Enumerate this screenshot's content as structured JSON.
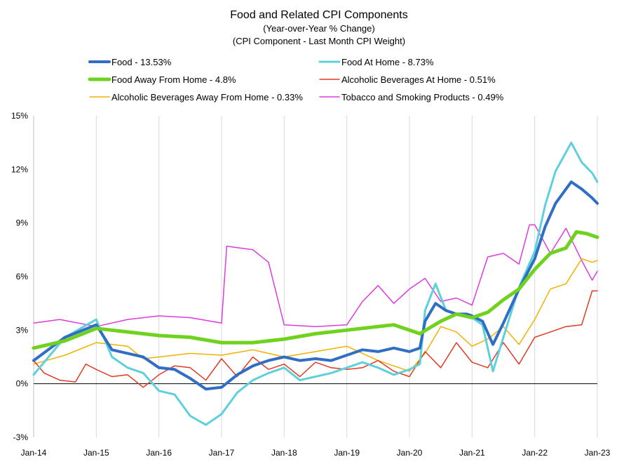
{
  "chart_data": {
    "type": "line",
    "title": "Food and Related CPI Components",
    "subtitle_1": "(Year-over-Year % Change)",
    "subtitle_2": "(CPI Component - Last Month CPI Weight)",
    "xlabel": "",
    "ylabel": "",
    "ylim": [
      -3,
      15
    ],
    "yticks": [
      -3,
      0,
      3,
      6,
      9,
      12,
      15
    ],
    "ytick_labels": [
      "-3%",
      "0%",
      "3%",
      "6%",
      "9%",
      "12%",
      "15%"
    ],
    "x_start": "Jan-14",
    "x_end": "Jan-23",
    "xtick_labels": [
      "Jan-14",
      "Jan-15",
      "Jan-16",
      "Jan-17",
      "Jan-18",
      "Jan-19",
      "Jan-20",
      "Jan-21",
      "Jan-22",
      "Jan-23"
    ],
    "grid": "vertical",
    "legend_position": "top",
    "series": [
      {
        "name": "Food - 13.53%",
        "color": "#2F6EC4",
        "width": 4,
        "points": [
          [
            "Jan-14",
            1.3
          ],
          [
            "Jul-14",
            2.6
          ],
          [
            "Jan-15",
            3.3
          ],
          [
            "Apr-15",
            1.9
          ],
          [
            "Jul-15",
            1.7
          ],
          [
            "Oct-15",
            1.5
          ],
          [
            "Jan-16",
            0.9
          ],
          [
            "Apr-16",
            0.8
          ],
          [
            "Jul-16",
            0.3
          ],
          [
            "Oct-16",
            -0.3
          ],
          [
            "Jan-17",
            -0.2
          ],
          [
            "Apr-17",
            0.5
          ],
          [
            "Jul-17",
            1.0
          ],
          [
            "Oct-17",
            1.3
          ],
          [
            "Jan-18",
            1.5
          ],
          [
            "Apr-18",
            1.3
          ],
          [
            "Jul-18",
            1.4
          ],
          [
            "Oct-18",
            1.3
          ],
          [
            "Jan-19",
            1.6
          ],
          [
            "Apr-19",
            1.9
          ],
          [
            "Jul-19",
            1.8
          ],
          [
            "Oct-19",
            2.0
          ],
          [
            "Jan-20",
            1.8
          ],
          [
            "Mar-20",
            2.0
          ],
          [
            "Apr-20",
            3.5
          ],
          [
            "Jun-20",
            4.5
          ],
          [
            "Aug-20",
            4.1
          ],
          [
            "Oct-20",
            3.9
          ],
          [
            "Dec-20",
            3.9
          ],
          [
            "Jan-21",
            3.8
          ],
          [
            "Mar-21",
            3.5
          ],
          [
            "May-21",
            2.2
          ],
          [
            "Jul-21",
            3.4
          ],
          [
            "Oct-21",
            5.3
          ],
          [
            "Jan-22",
            7.0
          ],
          [
            "Mar-22",
            8.8
          ],
          [
            "May-22",
            10.1
          ],
          [
            "Aug-22",
            11.3
          ],
          [
            "Oct-22",
            10.9
          ],
          [
            "Dec-22",
            10.4
          ],
          [
            "Jan-23",
            10.1
          ]
        ]
      },
      {
        "name": "Food At Home - 8.73%",
        "color": "#5ED0DC",
        "width": 3,
        "points": [
          [
            "Jan-14",
            0.5
          ],
          [
            "Jul-14",
            2.6
          ],
          [
            "Jan-15",
            3.6
          ],
          [
            "Apr-15",
            1.5
          ],
          [
            "Jul-15",
            0.9
          ],
          [
            "Oct-15",
            0.6
          ],
          [
            "Jan-16",
            -0.4
          ],
          [
            "Apr-16",
            -0.6
          ],
          [
            "Jul-16",
            -1.8
          ],
          [
            "Oct-16",
            -2.3
          ],
          [
            "Jan-17",
            -1.7
          ],
          [
            "Apr-17",
            -0.5
          ],
          [
            "Jul-17",
            0.2
          ],
          [
            "Oct-17",
            0.6
          ],
          [
            "Jan-18",
            0.9
          ],
          [
            "Apr-18",
            0.2
          ],
          [
            "Jul-18",
            0.4
          ],
          [
            "Oct-18",
            0.6
          ],
          [
            "Jan-19",
            0.9
          ],
          [
            "Apr-19",
            1.2
          ],
          [
            "Jul-19",
            0.9
          ],
          [
            "Oct-19",
            0.5
          ],
          [
            "Jan-20",
            0.8
          ],
          [
            "Mar-20",
            1.1
          ],
          [
            "Apr-20",
            4.1
          ],
          [
            "Jun-20",
            5.6
          ],
          [
            "Aug-20",
            4.1
          ],
          [
            "Oct-20",
            3.9
          ],
          [
            "Dec-20",
            3.9
          ],
          [
            "Jan-21",
            3.7
          ],
          [
            "Mar-21",
            3.3
          ],
          [
            "May-21",
            0.7
          ],
          [
            "Jul-21",
            2.6
          ],
          [
            "Oct-21",
            5.4
          ],
          [
            "Jan-22",
            7.4
          ],
          [
            "Mar-22",
            10.0
          ],
          [
            "May-22",
            11.9
          ],
          [
            "Aug-22",
            13.5
          ],
          [
            "Oct-22",
            12.4
          ],
          [
            "Dec-22",
            11.8
          ],
          [
            "Jan-23",
            11.3
          ]
        ]
      },
      {
        "name": "Food Away From Home - 4.8%",
        "color": "#6FD21E",
        "width": 5,
        "points": [
          [
            "Jan-14",
            2.0
          ],
          [
            "Jul-14",
            2.4
          ],
          [
            "Jan-15",
            3.1
          ],
          [
            "Jul-15",
            2.9
          ],
          [
            "Jan-16",
            2.7
          ],
          [
            "Jul-16",
            2.6
          ],
          [
            "Jan-17",
            2.3
          ],
          [
            "Jul-17",
            2.3
          ],
          [
            "Jan-18",
            2.5
          ],
          [
            "Jul-18",
            2.8
          ],
          [
            "Jan-19",
            3.0
          ],
          [
            "Jul-19",
            3.2
          ],
          [
            "Oct-19",
            3.3
          ],
          [
            "Jan-20",
            3.0
          ],
          [
            "Mar-20",
            2.8
          ],
          [
            "Jul-20",
            3.5
          ],
          [
            "Oct-20",
            3.9
          ],
          [
            "Jan-21",
            3.7
          ],
          [
            "Apr-21",
            4.0
          ],
          [
            "Jul-21",
            4.7
          ],
          [
            "Oct-21",
            5.3
          ],
          [
            "Jan-22",
            6.4
          ],
          [
            "Apr-22",
            7.3
          ],
          [
            "Jul-22",
            7.6
          ],
          [
            "Sep-22",
            8.5
          ],
          [
            "Nov-22",
            8.4
          ],
          [
            "Jan-23",
            8.2
          ]
        ]
      },
      {
        "name": "Alcoholic Beverages At Home - 0.51%",
        "color": "#E03A22",
        "width": 1.5,
        "points": [
          [
            "Jan-14",
            1.3
          ],
          [
            "Mar-14",
            0.6
          ],
          [
            "Jun-14",
            0.2
          ],
          [
            "Sep-14",
            0.1
          ],
          [
            "Nov-14",
            1.1
          ],
          [
            "Jan-15",
            0.8
          ],
          [
            "Apr-15",
            0.4
          ],
          [
            "Jul-15",
            0.5
          ],
          [
            "Oct-15",
            -0.2
          ],
          [
            "Jan-16",
            0.5
          ],
          [
            "Apr-16",
            1.0
          ],
          [
            "Jul-16",
            0.9
          ],
          [
            "Oct-16",
            0.2
          ],
          [
            "Jan-17",
            1.4
          ],
          [
            "Apr-17",
            0.4
          ],
          [
            "Jul-17",
            1.5
          ],
          [
            "Oct-17",
            0.8
          ],
          [
            "Jan-18",
            1.1
          ],
          [
            "Apr-18",
            0.4
          ],
          [
            "Jul-18",
            1.2
          ],
          [
            "Oct-18",
            0.9
          ],
          [
            "Jan-19",
            0.8
          ],
          [
            "Apr-19",
            0.9
          ],
          [
            "Jul-19",
            1.3
          ],
          [
            "Oct-19",
            0.7
          ],
          [
            "Jan-20",
            0.4
          ],
          [
            "Apr-20",
            1.8
          ],
          [
            "Jul-20",
            0.9
          ],
          [
            "Oct-20",
            2.3
          ],
          [
            "Jan-21",
            1.2
          ],
          [
            "Apr-21",
            0.9
          ],
          [
            "Jul-21",
            2.3
          ],
          [
            "Oct-21",
            1.1
          ],
          [
            "Jan-22",
            2.6
          ],
          [
            "Apr-22",
            2.9
          ],
          [
            "Jul-22",
            3.2
          ],
          [
            "Oct-22",
            3.3
          ],
          [
            "Dec-22",
            5.2
          ],
          [
            "Jan-23",
            5.2
          ]
        ]
      },
      {
        "name": "Alcoholic Beverages Away From Home - 0.33%",
        "color": "#F2B100",
        "width": 1.5,
        "points": [
          [
            "Jan-14",
            1.1
          ],
          [
            "Jul-14",
            1.6
          ],
          [
            "Jan-15",
            2.3
          ],
          [
            "Jul-15",
            2.1
          ],
          [
            "Oct-15",
            1.4
          ],
          [
            "Jan-16",
            1.5
          ],
          [
            "Jul-16",
            1.7
          ],
          [
            "Jan-17",
            1.6
          ],
          [
            "Jul-17",
            1.9
          ],
          [
            "Jan-18",
            1.5
          ],
          [
            "Jul-18",
            1.8
          ],
          [
            "Jan-19",
            2.1
          ],
          [
            "Jul-19",
            1.3
          ],
          [
            "Jan-20",
            0.7
          ],
          [
            "Apr-20",
            1.7
          ],
          [
            "Jul-20",
            3.2
          ],
          [
            "Oct-20",
            2.9
          ],
          [
            "Jan-21",
            2.1
          ],
          [
            "Apr-21",
            2.5
          ],
          [
            "Jul-21",
            3.2
          ],
          [
            "Oct-21",
            2.2
          ],
          [
            "Jan-22",
            3.6
          ],
          [
            "Apr-22",
            5.3
          ],
          [
            "Jul-22",
            5.6
          ],
          [
            "Oct-22",
            7.0
          ],
          [
            "Dec-22",
            6.8
          ],
          [
            "Jan-23",
            6.9
          ]
        ]
      },
      {
        "name": "Tobacco and Smoking Products - 0.49%",
        "color": "#DD3BDD",
        "width": 1.5,
        "points": [
          [
            "Jan-14",
            3.4
          ],
          [
            "Jun-14",
            3.6
          ],
          [
            "Jan-15",
            3.2
          ],
          [
            "Jul-15",
            3.6
          ],
          [
            "Jan-16",
            3.8
          ],
          [
            "Jul-16",
            3.7
          ],
          [
            "Jan-17",
            3.4
          ],
          [
            "Feb-17",
            7.7
          ],
          [
            "Jul-17",
            7.5
          ],
          [
            "Oct-17",
            6.8
          ],
          [
            "Jan-18",
            3.3
          ],
          [
            "Jul-18",
            3.2
          ],
          [
            "Jan-19",
            3.3
          ],
          [
            "Apr-19",
            4.6
          ],
          [
            "Jul-19",
            5.5
          ],
          [
            "Oct-19",
            4.5
          ],
          [
            "Jan-20",
            5.3
          ],
          [
            "Apr-20",
            5.9
          ],
          [
            "Jul-20",
            4.6
          ],
          [
            "Oct-20",
            4.8
          ],
          [
            "Jan-21",
            4.4
          ],
          [
            "Apr-21",
            7.1
          ],
          [
            "Jul-21",
            7.3
          ],
          [
            "Oct-21",
            6.7
          ],
          [
            "Dec-21",
            8.9
          ],
          [
            "Jan-22",
            8.9
          ],
          [
            "Apr-22",
            7.3
          ],
          [
            "Jul-22",
            8.7
          ],
          [
            "Oct-22",
            6.9
          ],
          [
            "Dec-22",
            5.8
          ],
          [
            "Jan-23",
            6.3
          ]
        ]
      }
    ]
  }
}
